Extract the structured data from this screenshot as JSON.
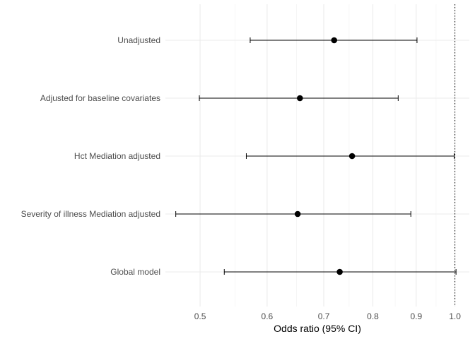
{
  "chart_data": {
    "type": "forest",
    "xlabel": "Odds ratio (95% CI)",
    "x_scale": "log",
    "xlim": [
      0.455,
      1.04
    ],
    "x_ticks": [
      0.5,
      0.6,
      0.7,
      0.8,
      0.9,
      1.0
    ],
    "x_tick_labels": [
      "0.5",
      "0.6",
      "0.7",
      "0.8",
      "0.9",
      "1.0"
    ],
    "reference_line": 1.0,
    "grid": true,
    "rows": [
      {
        "label": "Unadjusted",
        "estimate": 0.72,
        "lower": 0.573,
        "upper": 0.902
      },
      {
        "label": "Adjusted for baseline covariates",
        "estimate": 0.656,
        "lower": 0.499,
        "upper": 0.857
      },
      {
        "label": "Hct Mediation adjusted",
        "estimate": 0.756,
        "lower": 0.567,
        "upper": 0.998
      },
      {
        "label": "Severity of illness Mediation adjusted",
        "estimate": 0.652,
        "lower": 0.468,
        "upper": 0.887
      },
      {
        "label": "Global model",
        "estimate": 0.731,
        "lower": 0.534,
        "upper": 1.003
      }
    ]
  }
}
